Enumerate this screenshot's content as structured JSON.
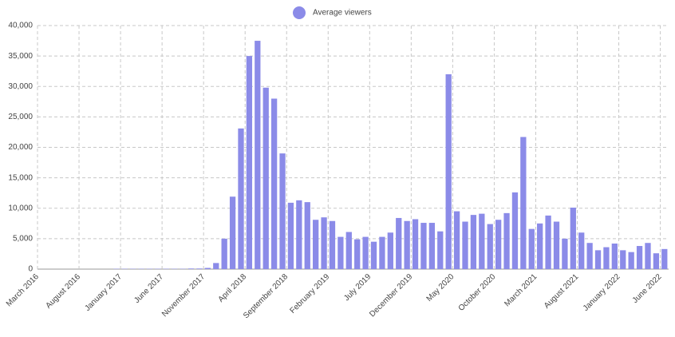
{
  "chart_data": {
    "type": "bar",
    "categories": [
      "March 2016",
      null,
      null,
      null,
      null,
      "August 2016",
      null,
      null,
      null,
      null,
      "January 2017",
      null,
      null,
      null,
      null,
      "June 2017",
      null,
      null,
      null,
      null,
      "November 2017",
      null,
      null,
      null,
      null,
      "April 2018",
      null,
      null,
      null,
      null,
      "September 2018",
      null,
      null,
      null,
      null,
      "February 2019",
      null,
      null,
      null,
      null,
      "July 2019",
      null,
      null,
      null,
      null,
      "December 2019",
      null,
      null,
      null,
      null,
      "May 2020",
      null,
      null,
      null,
      null,
      "October 2020",
      null,
      null,
      null,
      null,
      "March 2021",
      null,
      null,
      null,
      null,
      "August 2021",
      null,
      null,
      null,
      null,
      "January 2022",
      null,
      null,
      null,
      null,
      "June 2022"
    ],
    "series": [
      {
        "name": "Average viewers",
        "color": "#8b8be8",
        "values": [
          0,
          0,
          0,
          0,
          0,
          0,
          0,
          0,
          0,
          50,
          50,
          50,
          50,
          50,
          50,
          50,
          50,
          50,
          100,
          100,
          200,
          1000,
          5000,
          11900,
          23100,
          35000,
          37500,
          29800,
          28000,
          19000,
          10900,
          11300,
          11000,
          8100,
          8500,
          7900,
          5300,
          6100,
          4900,
          5300,
          4500,
          5300,
          6000,
          8400,
          7900,
          8200,
          7600,
          7600,
          6200,
          32000,
          9500,
          7800,
          8900,
          9100,
          7400,
          8100,
          9200,
          12600,
          21700,
          6600,
          7500,
          8800,
          7800,
          5000,
          10100,
          6000,
          4300,
          3100,
          3600,
          4200,
          3100,
          2800,
          3800,
          4300,
          2600,
          3300
        ]
      }
    ],
    "ylim": [
      0,
      40000
    ],
    "yticks": [
      0,
      {
        "value": 5000,
        "label": "5,000"
      },
      {
        "value": 10000,
        "label": "10,000"
      },
      {
        "value": 15000,
        "label": "15,000"
      },
      {
        "value": 20000,
        "label": "20,000"
      },
      {
        "value": 25000,
        "label": "25,000"
      },
      {
        "value": 30000,
        "label": "30,000"
      },
      {
        "value": 35000,
        "label": "35,000"
      },
      {
        "value": 40000,
        "label": "40,000"
      }
    ],
    "grid": true,
    "legend": "top"
  }
}
